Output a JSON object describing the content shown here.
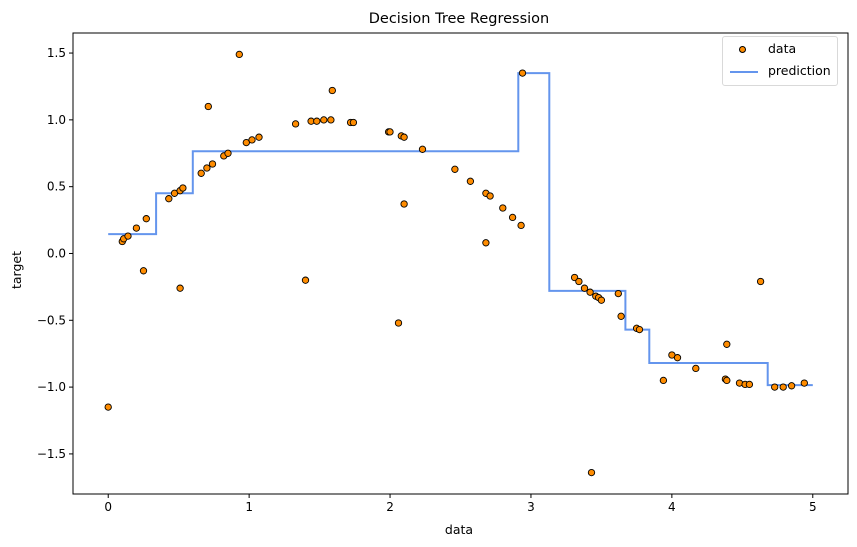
{
  "chart_data": {
    "type": "scatter",
    "title": "Decision Tree Regression",
    "xlabel": "data",
    "ylabel": "target",
    "xlim": [
      -0.25,
      5.25
    ],
    "ylim": [
      -1.8,
      1.65
    ],
    "xticks": [
      0,
      1,
      2,
      3,
      4,
      5
    ],
    "xtick_labels": [
      "0",
      "1",
      "2",
      "3",
      "4",
      "5"
    ],
    "yticks": [
      -1.5,
      -1.0,
      -0.5,
      0.0,
      0.5,
      1.0,
      1.5
    ],
    "ytick_labels": [
      "−1.5",
      "−1.0",
      "−0.5",
      "0.0",
      "0.5",
      "1.0",
      "1.5"
    ],
    "grid": false,
    "legend_position": "top-right",
    "series": [
      {
        "name": "data",
        "kind": "scatter",
        "color": "#ff8c00",
        "edgecolor": "#000000",
        "points": [
          [
            0.0,
            -1.15
          ],
          [
            0.1,
            0.09
          ],
          [
            0.11,
            0.11
          ],
          [
            0.14,
            0.13
          ],
          [
            0.2,
            0.19
          ],
          [
            0.25,
            -0.13
          ],
          [
            0.27,
            0.26
          ],
          [
            0.43,
            0.41
          ],
          [
            0.47,
            0.45
          ],
          [
            0.51,
            -0.26
          ],
          [
            0.51,
            0.47
          ],
          [
            0.53,
            0.49
          ],
          [
            0.66,
            0.6
          ],
          [
            0.7,
            0.64
          ],
          [
            0.71,
            1.1
          ],
          [
            0.74,
            0.67
          ],
          [
            0.82,
            0.73
          ],
          [
            0.85,
            0.75
          ],
          [
            0.93,
            1.49
          ],
          [
            0.98,
            0.83
          ],
          [
            1.02,
            0.85
          ],
          [
            1.07,
            0.87
          ],
          [
            1.33,
            0.97
          ],
          [
            1.4,
            -0.2
          ],
          [
            1.44,
            0.99
          ],
          [
            1.48,
            0.99
          ],
          [
            1.53,
            1.0
          ],
          [
            1.58,
            1.0
          ],
          [
            1.59,
            1.22
          ],
          [
            1.72,
            0.98
          ],
          [
            1.74,
            0.98
          ],
          [
            1.99,
            0.91
          ],
          [
            2.0,
            0.91
          ],
          [
            2.06,
            -0.52
          ],
          [
            2.08,
            0.88
          ],
          [
            2.1,
            0.87
          ],
          [
            2.1,
            0.37
          ],
          [
            2.23,
            0.78
          ],
          [
            2.46,
            0.63
          ],
          [
            2.57,
            0.54
          ],
          [
            2.68,
            0.45
          ],
          [
            2.68,
            0.08
          ],
          [
            2.71,
            0.43
          ],
          [
            2.8,
            0.34
          ],
          [
            2.87,
            0.27
          ],
          [
            2.93,
            0.21
          ],
          [
            2.94,
            1.35
          ],
          [
            3.31,
            -0.18
          ],
          [
            3.34,
            -0.21
          ],
          [
            3.38,
            -0.26
          ],
          [
            3.42,
            -0.29
          ],
          [
            3.43,
            -1.64
          ],
          [
            3.46,
            -0.32
          ],
          [
            3.48,
            -0.33
          ],
          [
            3.5,
            -0.35
          ],
          [
            3.62,
            -0.3
          ],
          [
            3.64,
            -0.47
          ],
          [
            3.75,
            -0.56
          ],
          [
            3.77,
            -0.57
          ],
          [
            3.94,
            -0.95
          ],
          [
            4.0,
            -0.76
          ],
          [
            4.04,
            -0.78
          ],
          [
            4.17,
            -0.86
          ],
          [
            4.38,
            -0.94
          ],
          [
            4.39,
            -0.95
          ],
          [
            4.39,
            -0.68
          ],
          [
            4.48,
            -0.97
          ],
          [
            4.52,
            -0.98
          ],
          [
            4.55,
            -0.98
          ],
          [
            4.63,
            -0.21
          ],
          [
            4.73,
            -1.0
          ],
          [
            4.79,
            -1.0
          ],
          [
            4.85,
            -0.99
          ],
          [
            4.94,
            -0.97
          ]
        ]
      },
      {
        "name": "prediction",
        "kind": "step-line",
        "color": "#6495ed",
        "steps": [
          [
            0.0,
            0.145
          ],
          [
            0.34,
            0.145
          ],
          [
            0.34,
            0.45
          ],
          [
            0.6,
            0.45
          ],
          [
            0.6,
            0.765
          ],
          [
            2.91,
            0.765
          ],
          [
            2.91,
            1.35
          ],
          [
            3.13,
            1.35
          ],
          [
            3.13,
            -0.28
          ],
          [
            3.67,
            -0.28
          ],
          [
            3.67,
            -0.57
          ],
          [
            3.84,
            -0.57
          ],
          [
            3.84,
            -0.82
          ],
          [
            4.68,
            -0.82
          ],
          [
            4.68,
            -0.985
          ],
          [
            5.0,
            -0.985
          ]
        ]
      }
    ]
  }
}
